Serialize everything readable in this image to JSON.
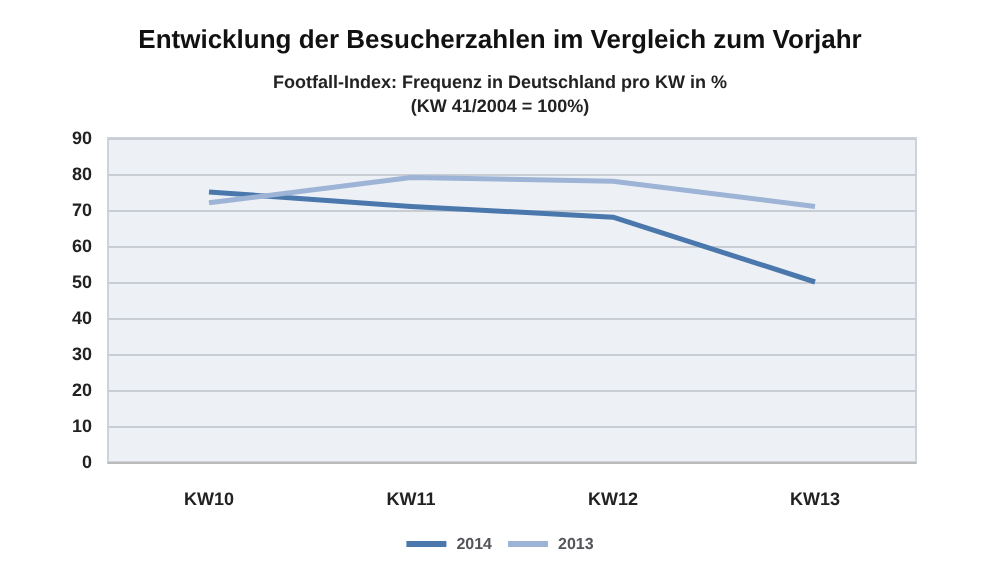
{
  "chart_data": {
    "type": "line",
    "title": "Entwicklung der Besucherzahlen im Vergleich zum Vorjahr",
    "subtitle": "Footfall-Index: Frequenz in Deutschland pro KW in %\n(KW 41/2004 = 100%)",
    "categories": [
      "KW10",
      "KW11",
      "KW12",
      "KW13"
    ],
    "series": [
      {
        "name": "2014",
        "color": "#4a78ad",
        "values": [
          75,
          71,
          68,
          50
        ]
      },
      {
        "name": "2013",
        "color": "#9db4d6",
        "values": [
          72,
          79,
          78,
          71
        ]
      }
    ],
    "ylim": [
      0,
      90
    ],
    "yticks": [
      0,
      10,
      20,
      30,
      40,
      50,
      60,
      70,
      80,
      90
    ],
    "grid": "y",
    "legend": "bottom",
    "marker": "none",
    "line_style": "solid"
  }
}
